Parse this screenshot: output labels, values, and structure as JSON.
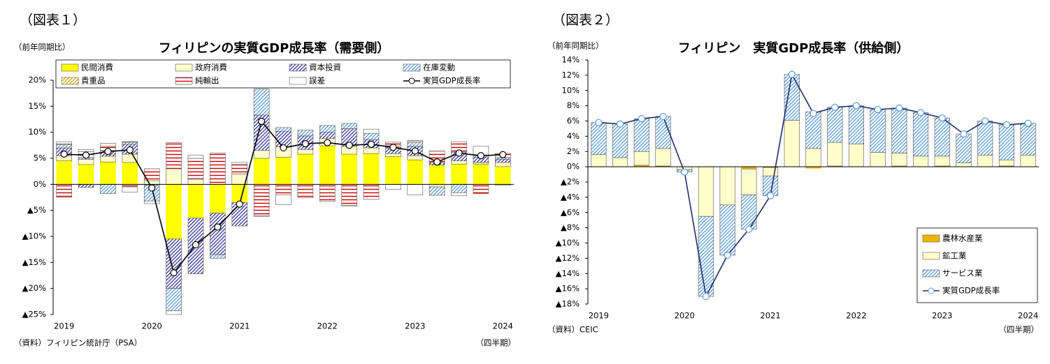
{
  "chart_data": [
    {
      "type": "bar",
      "stacked": true,
      "figure_label": "（図表１）",
      "unit_label": "（前年同期比）",
      "title": "フィリピンの実質GDP成長率（需要側）",
      "source": "（資料）フィリピン統計庁（PSA）",
      "period_label": "（四半期）",
      "legend": "top",
      "categories": [
        "2019",
        null,
        null,
        null,
        "2020",
        null,
        null,
        null,
        "2021",
        null,
        null,
        null,
        "2022",
        null,
        null,
        null,
        "2023",
        null,
        null,
        null,
        "2024"
      ],
      "ylim": [
        -25,
        20
      ],
      "yticks": [
        {
          "value": 20,
          "label": "20%"
        },
        {
          "value": 15,
          "label": "15%"
        },
        {
          "value": 10,
          "label": "10%"
        },
        {
          "value": 5,
          "label": "5%"
        },
        {
          "value": 0,
          "label": "0%"
        },
        {
          "value": -5,
          "label": "▲5%"
        },
        {
          "value": -10,
          "label": "▲10%"
        },
        {
          "value": -15,
          "label": "▲15%"
        },
        {
          "value": -20,
          "label": "▲20%"
        },
        {
          "value": -25,
          "label": "▲25%"
        }
      ],
      "series": [
        {
          "name": "民間消費",
          "color": "#ffff00",
          "pattern": "solid",
          "values": [
            4.5,
            3.8,
            4.3,
            4.2,
            0.0,
            -10.5,
            -6.5,
            -5.5,
            -3.5,
            5.0,
            5.2,
            5.8,
            7.4,
            5.8,
            5.9,
            5.3,
            4.7,
            3.7,
            3.9,
            3.9,
            3.4
          ]
        },
        {
          "name": "政府消費",
          "color": "#ffffcc",
          "pattern": "solid",
          "values": [
            1.0,
            1.0,
            1.1,
            1.6,
            0.7,
            3.0,
            1.0,
            0.0,
            2.0,
            1.5,
            2.0,
            0.9,
            1.4,
            1.5,
            1.1,
            0.6,
            0.8,
            -0.5,
            0.6,
            0.3,
            0.8
          ]
        },
        {
          "name": "資本投資",
          "color": "#333399",
          "pattern": "diagonal",
          "values": [
            1.5,
            -0.6,
            1.0,
            1.9,
            -0.2,
            -9.5,
            -10.7,
            -8.0,
            -4.5,
            6.8,
            3.0,
            2.6,
            1.2,
            3.4,
            1.6,
            1.0,
            1.8,
            0.5,
            1.7,
            1.0,
            0.6
          ]
        },
        {
          "name": "在庫変動",
          "color": "#5b9bd5",
          "pattern": "diagonal",
          "values": [
            0.6,
            0.3,
            -1.8,
            0.4,
            -3.0,
            -4.3,
            0.0,
            -0.7,
            0.0,
            5.0,
            0.7,
            1.1,
            1.3,
            1.0,
            1.2,
            0.2,
            0.8,
            -1.6,
            -1.6,
            0.3,
            0.3
          ]
        },
        {
          "name": "貴重品",
          "color": "#e6a000",
          "pattern": "diagonal",
          "values": [
            0.2,
            0.0,
            0.1,
            0.1,
            0.0,
            0.0,
            0.0,
            0.0,
            0.0,
            0.0,
            0.0,
            0.0,
            0.0,
            0.0,
            0.0,
            0.3,
            0.0,
            0.0,
            0.0,
            0.0,
            0.0
          ]
        },
        {
          "name": "純輸出",
          "color": "#cc0000",
          "pattern": "horizontal",
          "values": [
            -2.5,
            1.2,
            0.8,
            -0.5,
            2.3,
            5.0,
            4.0,
            6.0,
            1.8,
            -6.0,
            -2.0,
            -2.6,
            -3.3,
            -4.0,
            -2.9,
            0.7,
            0.3,
            2.2,
            2.0,
            -1.8,
            0.8
          ]
        },
        {
          "name": "誤差",
          "color": "#ffffff",
          "pattern": "solid",
          "values": [
            0.4,
            0.4,
            0.6,
            -1.0,
            -0.5,
            -0.7,
            0.6,
            0.0,
            0.4,
            -0.2,
            -1.9,
            0.0,
            0.0,
            -0.2,
            0.8,
            -1.0,
            -2.0,
            0.0,
            -0.6,
            1.8,
            -0.2
          ]
        },
        {
          "name": "実質GDP成長率",
          "type": "line",
          "color": "#000000",
          "marker_edge": "#000000",
          "values": [
            5.8,
            5.6,
            6.3,
            6.6,
            -0.7,
            -17.0,
            -11.6,
            -8.2,
            -3.8,
            12.1,
            7.0,
            7.8,
            8.0,
            7.5,
            7.7,
            7.1,
            6.4,
            4.3,
            6.0,
            5.5,
            5.7
          ]
        }
      ]
    },
    {
      "type": "bar",
      "stacked": true,
      "figure_label": "（図表２）",
      "unit_label": "（前年同期比）",
      "title": "フィリピン　実質GDP成長率（供給側）",
      "source": "（資料）CEIC",
      "period_label": "（四半期）",
      "legend": "lower right",
      "categories": [
        "2019",
        null,
        null,
        null,
        "2020",
        null,
        null,
        null,
        "2021",
        null,
        null,
        null,
        "2022",
        null,
        null,
        null,
        "2023",
        null,
        null,
        null,
        "2024"
      ],
      "ylim": [
        -18,
        14
      ],
      "yticks": [
        {
          "value": 14,
          "label": "14%"
        },
        {
          "value": 12,
          "label": "12%"
        },
        {
          "value": 10,
          "label": "10%"
        },
        {
          "value": 8,
          "label": "8%"
        },
        {
          "value": 6,
          "label": "6%"
        },
        {
          "value": 4,
          "label": "4%"
        },
        {
          "value": 2,
          "label": "2%"
        },
        {
          "value": 0,
          "label": "0%"
        },
        {
          "value": -2,
          "label": "▲2%"
        },
        {
          "value": -4,
          "label": "▲4%"
        },
        {
          "value": -6,
          "label": "▲6%"
        },
        {
          "value": -8,
          "label": "▲8%"
        },
        {
          "value": -10,
          "label": "▲10%"
        },
        {
          "value": -12,
          "label": "▲12%"
        },
        {
          "value": -14,
          "label": "▲14%"
        },
        {
          "value": -16,
          "label": "▲16%"
        },
        {
          "value": -18,
          "label": "▲18%"
        }
      ],
      "series": [
        {
          "name": "農林水産業",
          "color": "#f0b400",
          "pattern": "solid",
          "values": [
            0.0,
            0.0,
            0.2,
            0.1,
            0.0,
            0.0,
            0.0,
            -0.3,
            -0.1,
            0.0,
            -0.2,
            0.1,
            0.0,
            0.0,
            0.1,
            0.0,
            0.1,
            0.0,
            0.0,
            0.1,
            0.0
          ]
        },
        {
          "name": "鉱工業",
          "color": "#ffffcc",
          "pattern": "solid",
          "values": [
            1.6,
            1.2,
            1.8,
            2.3,
            -0.4,
            -6.5,
            -5.0,
            -3.4,
            -1.1,
            6.1,
            2.4,
            3.1,
            3.0,
            1.9,
            1.7,
            1.4,
            1.3,
            0.5,
            1.5,
            0.8,
            1.5
          ]
        },
        {
          "name": "サービス業",
          "color": "#5b9bd5",
          "pattern": "diagonal",
          "values": [
            4.2,
            4.4,
            4.3,
            4.2,
            -0.3,
            -10.5,
            -6.6,
            -4.5,
            -2.6,
            6.0,
            4.8,
            4.6,
            5.0,
            5.6,
            5.9,
            5.7,
            5.0,
            3.8,
            4.5,
            4.6,
            4.2
          ]
        },
        {
          "name": "実質GDP成長率",
          "type": "line",
          "color": "#1f2d6e",
          "marker_edge": "#5b9bd5",
          "values": [
            5.8,
            5.6,
            6.3,
            6.6,
            -0.7,
            -17.0,
            -11.6,
            -8.2,
            -3.8,
            12.1,
            7.0,
            7.8,
            8.0,
            7.5,
            7.7,
            7.1,
            6.4,
            4.3,
            6.0,
            5.5,
            5.7
          ]
        }
      ]
    }
  ]
}
